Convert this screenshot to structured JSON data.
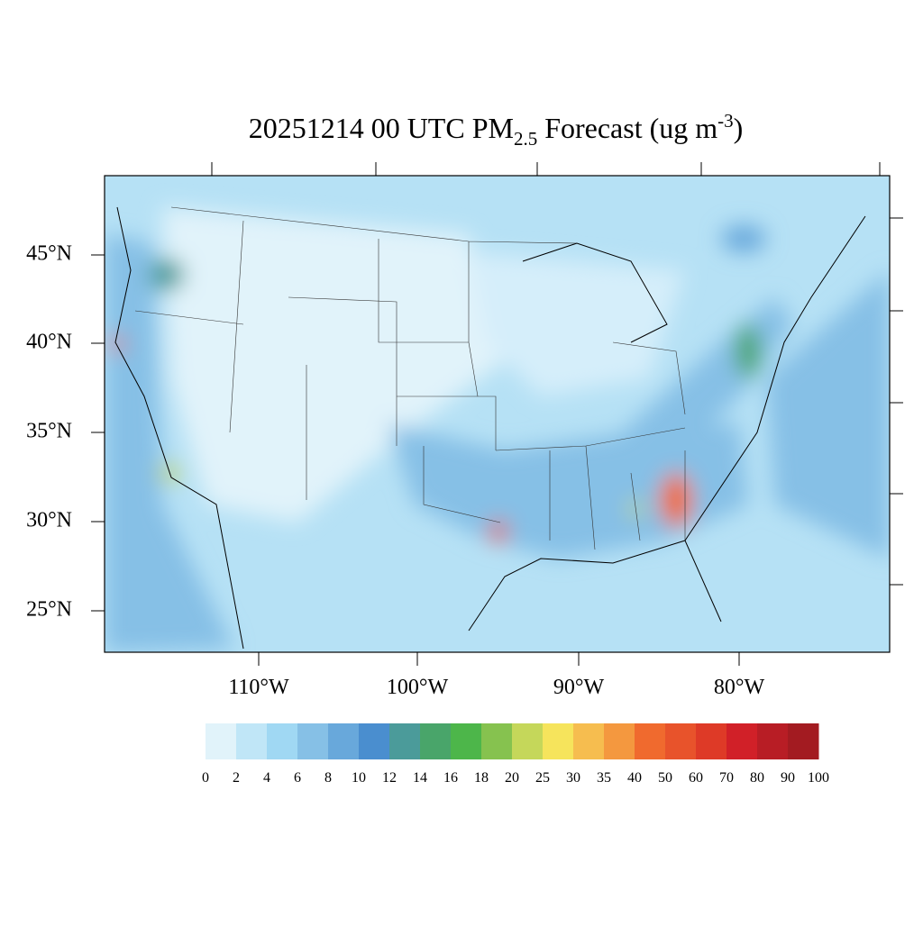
{
  "title": {
    "main": "20251214 00 UTC PM",
    "sub": "2.5",
    "mid": " Forecast (ug m",
    "sup": "-3",
    "end": ")"
  },
  "map": {
    "lat_labels": [
      "45°N",
      "40°N",
      "35°N",
      "30°N",
      "25°N"
    ],
    "lon_labels": [
      "110°W",
      "100°W",
      "90°W",
      "80°W"
    ]
  },
  "colorbar": {
    "levels": [
      0,
      2,
      4,
      6,
      8,
      10,
      12,
      14,
      16,
      18,
      20,
      25,
      30,
      35,
      40,
      50,
      60,
      70,
      80,
      90,
      100
    ],
    "colors": [
      "#e1f3fa",
      "#c0e6f7",
      "#a0d8f3",
      "#86c0e6",
      "#68a8db",
      "#4a8ecf",
      "#4b9b9a",
      "#49a56a",
      "#4db64a",
      "#86c24f",
      "#c5d75a",
      "#f6e45c",
      "#f6bd4f",
      "#f4983f",
      "#f06a2e",
      "#e8532b",
      "#de3a27",
      "#d12028",
      "#b81d25",
      "#a31b21"
    ]
  }
}
